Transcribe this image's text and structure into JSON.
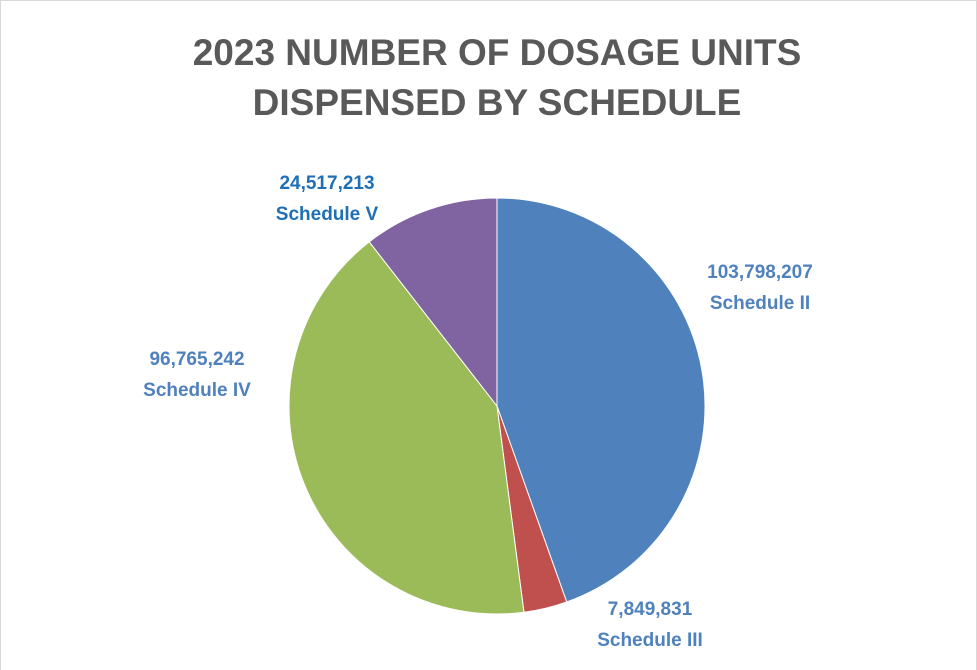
{
  "chart_data": {
    "type": "pie",
    "title": "2023 NUMBER OF DOSAGE UNITS DISPENSED BY SCHEDULE",
    "categories": [
      "Schedule II",
      "Schedule III",
      "Schedule IV",
      "Schedule V"
    ],
    "values": [
      103798207,
      7849831,
      96765242,
      24517213
    ],
    "value_labels": [
      "103,798,207",
      "7,849,831",
      "96,765,242",
      "24,517,213"
    ],
    "colors": [
      "#4f81bd",
      "#c0504d",
      "#9bbb59",
      "#8064a2"
    ],
    "label_colors": [
      "#4f81bd",
      "#4f81bd",
      "#4f81bd",
      "#1f6fb5"
    ]
  }
}
